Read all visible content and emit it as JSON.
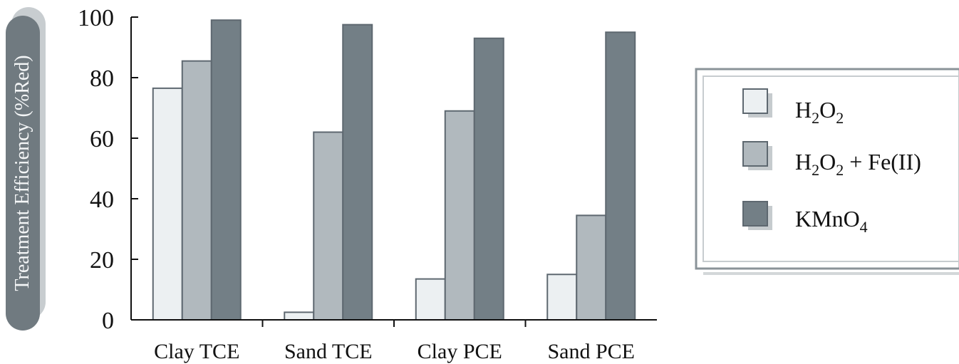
{
  "chart_data": {
    "type": "bar",
    "ylabel": "Treatment Efficiency (%Red)",
    "xlabel": "",
    "title": "",
    "ylim": [
      0,
      100
    ],
    "yticks": [
      0,
      20,
      40,
      60,
      80,
      100
    ],
    "categories": [
      "Clay TCE",
      "Sand TCE",
      "Clay PCE",
      "Sand PCE"
    ],
    "series": [
      {
        "name": "H₂O₂",
        "color": "#ecf0f2",
        "values": [
          76.5,
          2.5,
          13.5,
          15
        ]
      },
      {
        "name": "H₂O₂ + Fe(II)",
        "color": "#b1b9be",
        "values": [
          85.5,
          62,
          69,
          34.5
        ]
      },
      {
        "name": "KMnO₄",
        "color": "#737f86",
        "values": [
          99,
          97.5,
          93,
          95
        ]
      }
    ],
    "legend_position": "right"
  },
  "colors": {
    "bar_stroke": "#5e6870",
    "axis": "#111111",
    "label_badge": "#707a80",
    "legend_frame": "#8a9398"
  }
}
